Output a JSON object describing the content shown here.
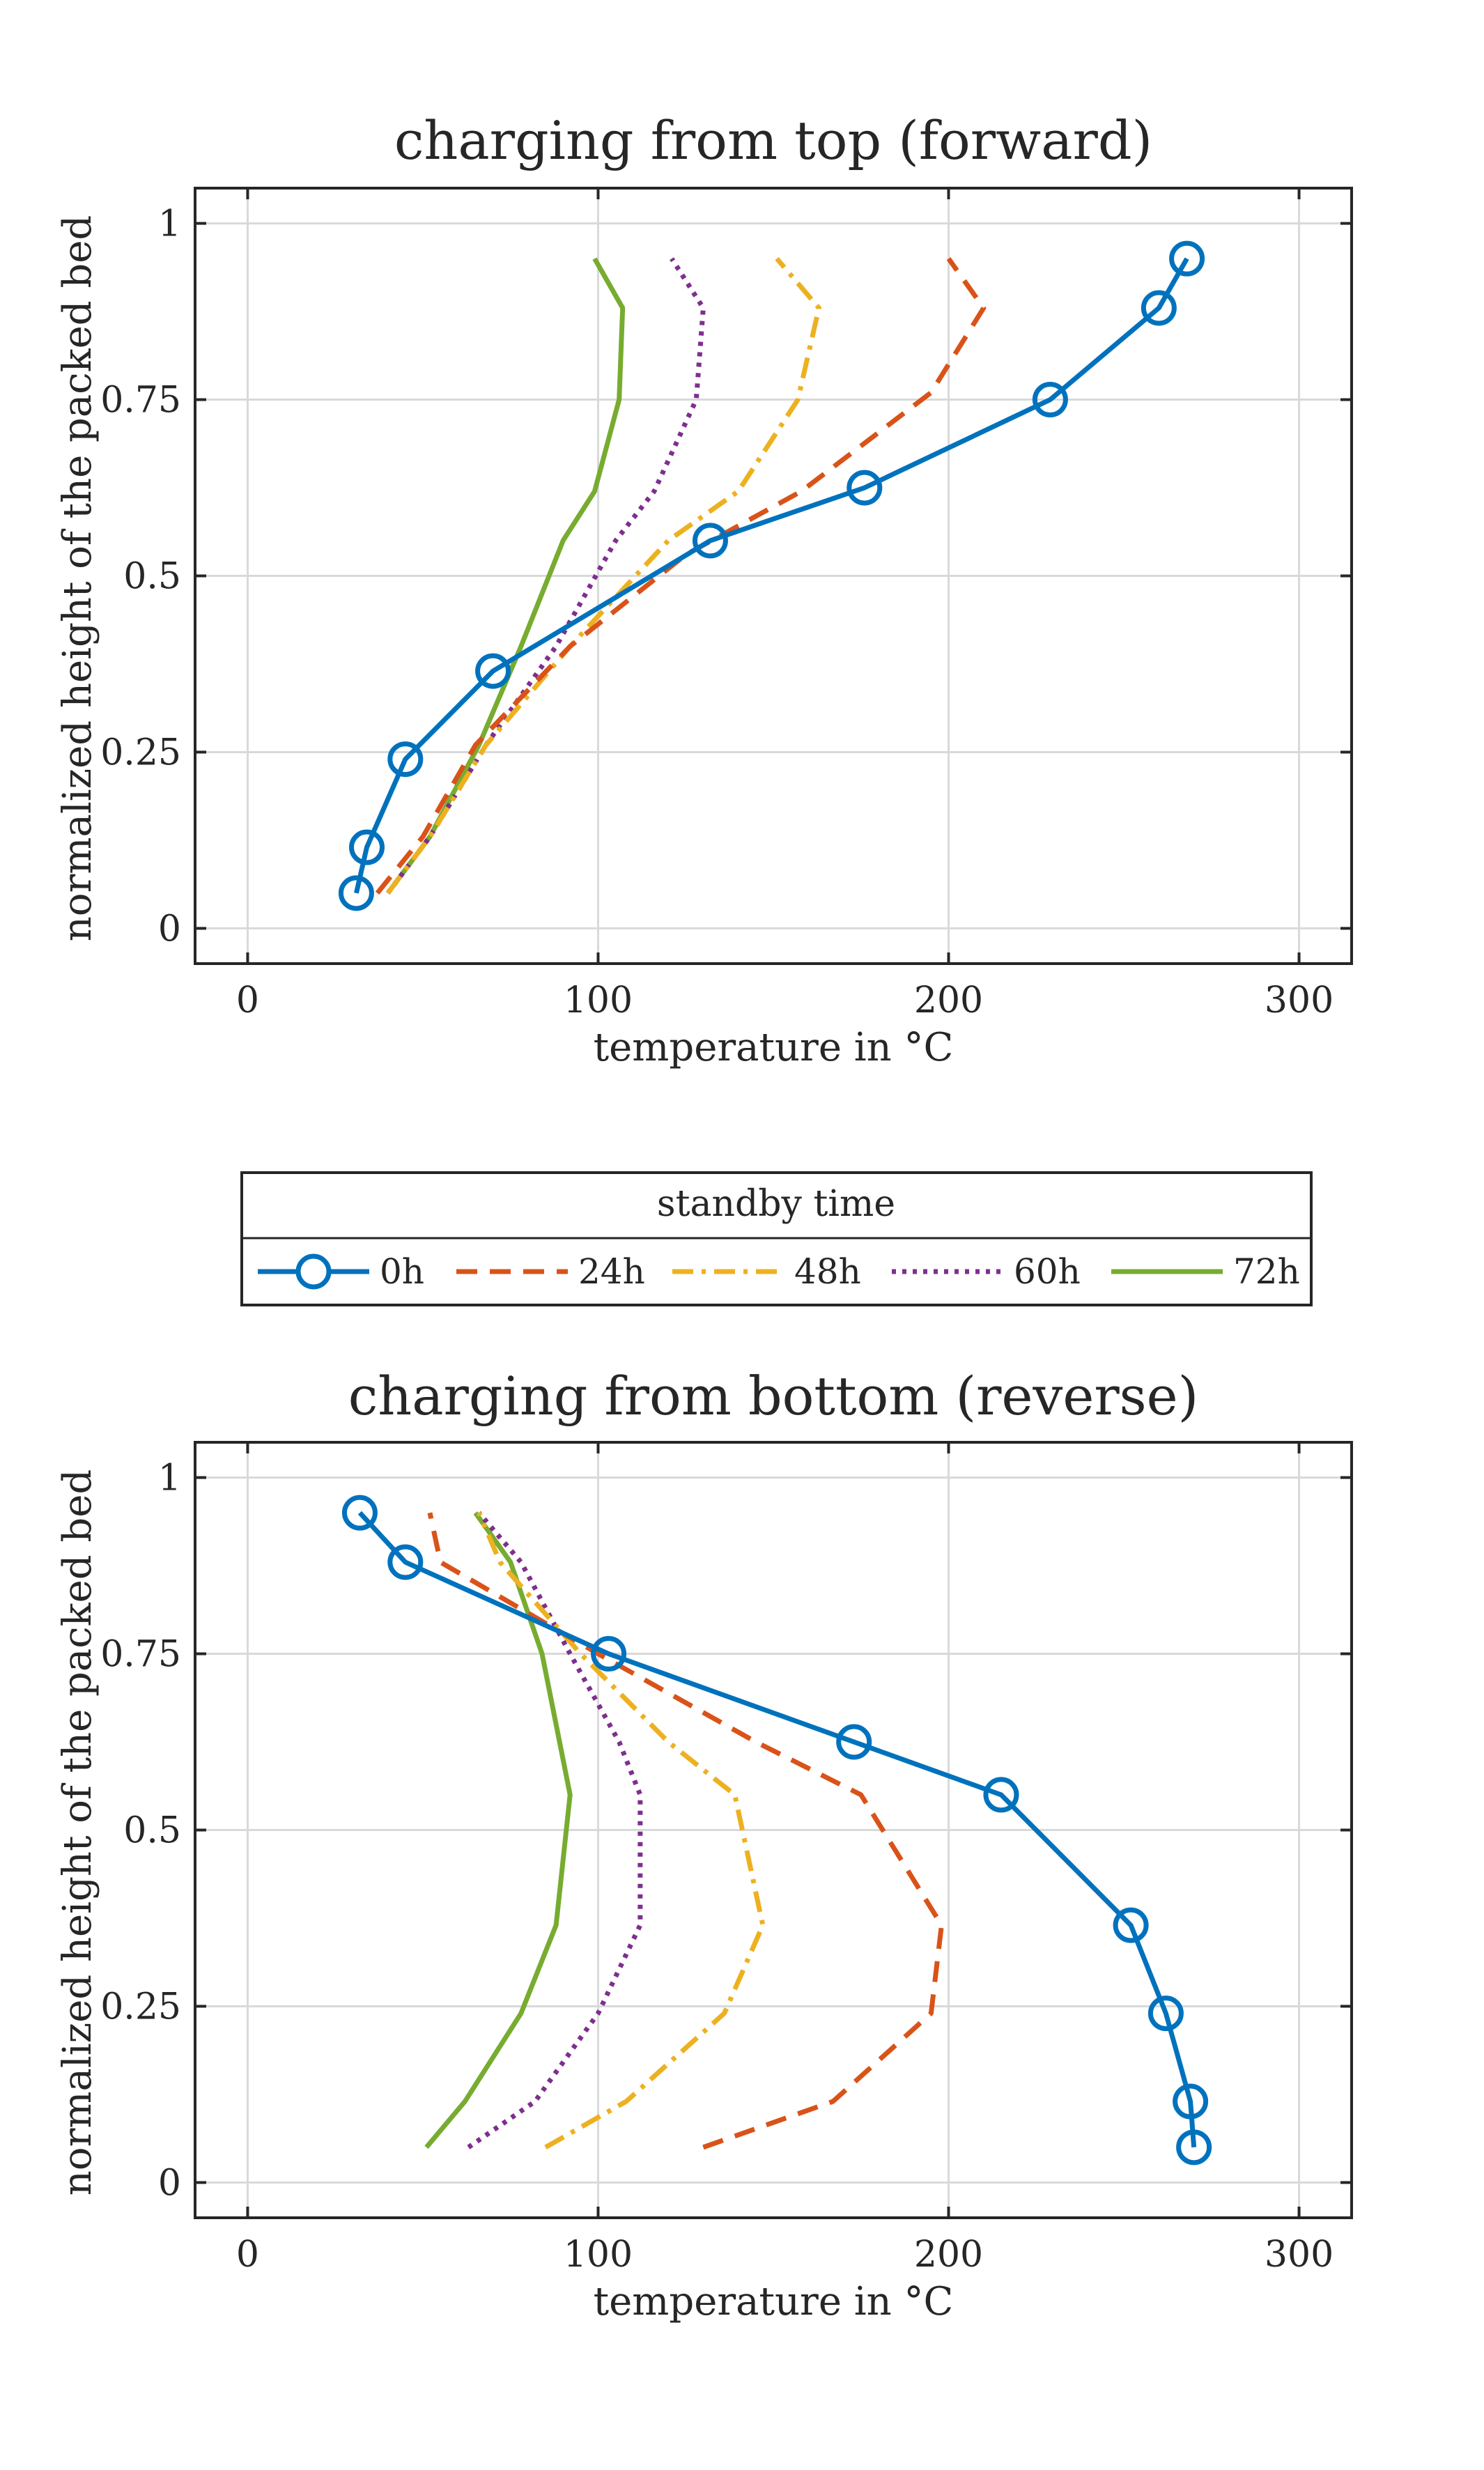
{
  "legend": {
    "title": "standby time",
    "entries": [
      {
        "name": "0h",
        "color": "#0072BD",
        "style": "solid-circle"
      },
      {
        "name": "24h",
        "color": "#D95319",
        "style": "dashed"
      },
      {
        "name": "48h",
        "color": "#EDB120",
        "style": "dashdot"
      },
      {
        "name": "60h",
        "color": "#7E2F8E",
        "style": "dotted"
      },
      {
        "name": "72h",
        "color": "#77AC30",
        "style": "solid"
      }
    ]
  },
  "chart_data": [
    {
      "type": "line",
      "title": "charging from top (forward)",
      "xlabel": "temperature in °C",
      "ylabel": "normalized height of the packed bed",
      "xlim": [
        -15,
        315
      ],
      "ylim": [
        -0.05,
        1.05
      ],
      "xticks": [
        0,
        100,
        200,
        300
      ],
      "xtick_labels": [
        "0",
        "100",
        "200",
        "300"
      ],
      "yticks": [
        0,
        0.25,
        0.5,
        0.75,
        1
      ],
      "ytick_labels": [
        "0",
        "0.25",
        "0.5",
        "0.75",
        "1"
      ],
      "grid": true,
      "series": [
        {
          "name": "0h",
          "x": [
            31,
            34,
            45,
            70,
            132,
            176,
            229,
            260,
            268
          ],
          "y": [
            0.05,
            0.115,
            0.24,
            0.365,
            0.55,
            0.625,
            0.75,
            0.88,
            0.95
          ]
        },
        {
          "name": "24h",
          "x": [
            37,
            50,
            65,
            92,
            125,
            158,
            195,
            210,
            200
          ],
          "y": [
            0.05,
            0.13,
            0.26,
            0.4,
            0.53,
            0.62,
            0.76,
            0.88,
            0.95
          ]
        },
        {
          "name": "48h",
          "x": [
            40,
            52,
            68,
            92,
            120,
            140,
            157,
            163,
            151
          ],
          "y": [
            0.05,
            0.13,
            0.26,
            0.4,
            0.55,
            0.62,
            0.75,
            0.88,
            0.95
          ]
        },
        {
          "name": "60h",
          "x": [
            40,
            52,
            68,
            88,
            105,
            116,
            128,
            130,
            121
          ],
          "y": [
            0.05,
            0.13,
            0.26,
            0.4,
            0.55,
            0.62,
            0.75,
            0.88,
            0.95
          ]
        },
        {
          "name": "72h",
          "x": [
            40,
            52,
            66,
            78,
            90,
            99,
            106,
            107,
            99
          ],
          "y": [
            0.05,
            0.13,
            0.26,
            0.4,
            0.55,
            0.62,
            0.75,
            0.88,
            0.95
          ]
        }
      ]
    },
    {
      "type": "line",
      "title": "charging from bottom (reverse)",
      "xlabel": "temperature in °C",
      "ylabel": "normalized height of the packed bed",
      "xlim": [
        -15,
        315
      ],
      "ylim": [
        -0.05,
        1.05
      ],
      "xticks": [
        0,
        100,
        200,
        300
      ],
      "xtick_labels": [
        "0",
        "100",
        "200",
        "300"
      ],
      "yticks": [
        0,
        0.25,
        0.5,
        0.75,
        1
      ],
      "ytick_labels": [
        "0",
        "0.25",
        "0.5",
        "0.75",
        "1"
      ],
      "grid": true,
      "series": [
        {
          "name": "0h",
          "x": [
            270,
            269,
            262,
            252,
            215,
            173,
            103,
            45,
            32
          ],
          "y": [
            0.05,
            0.115,
            0.24,
            0.365,
            0.55,
            0.625,
            0.75,
            0.88,
            0.95
          ]
        },
        {
          "name": "24h",
          "x": [
            130,
            167,
            195,
            198,
            175,
            145,
            100,
            55,
            52
          ],
          "y": [
            0.05,
            0.115,
            0.24,
            0.365,
            0.55,
            0.625,
            0.75,
            0.88,
            0.95
          ]
        },
        {
          "name": "48h",
          "x": [
            85,
            108,
            136,
            147,
            139,
            120,
            95,
            72,
            66
          ],
          "y": [
            0.05,
            0.115,
            0.24,
            0.365,
            0.55,
            0.625,
            0.75,
            0.88,
            0.95
          ]
        },
        {
          "name": "60h",
          "x": [
            63,
            82,
            100,
            112,
            112,
            106,
            92,
            78,
            66
          ],
          "y": [
            0.05,
            0.115,
            0.24,
            0.365,
            0.55,
            0.625,
            0.75,
            0.88,
            0.95
          ]
        },
        {
          "name": "72h",
          "x": [
            51,
            62,
            78,
            88,
            92,
            89,
            84,
            75,
            65
          ],
          "y": [
            0.05,
            0.115,
            0.24,
            0.365,
            0.55,
            0.625,
            0.75,
            0.88,
            0.95
          ]
        }
      ]
    }
  ]
}
